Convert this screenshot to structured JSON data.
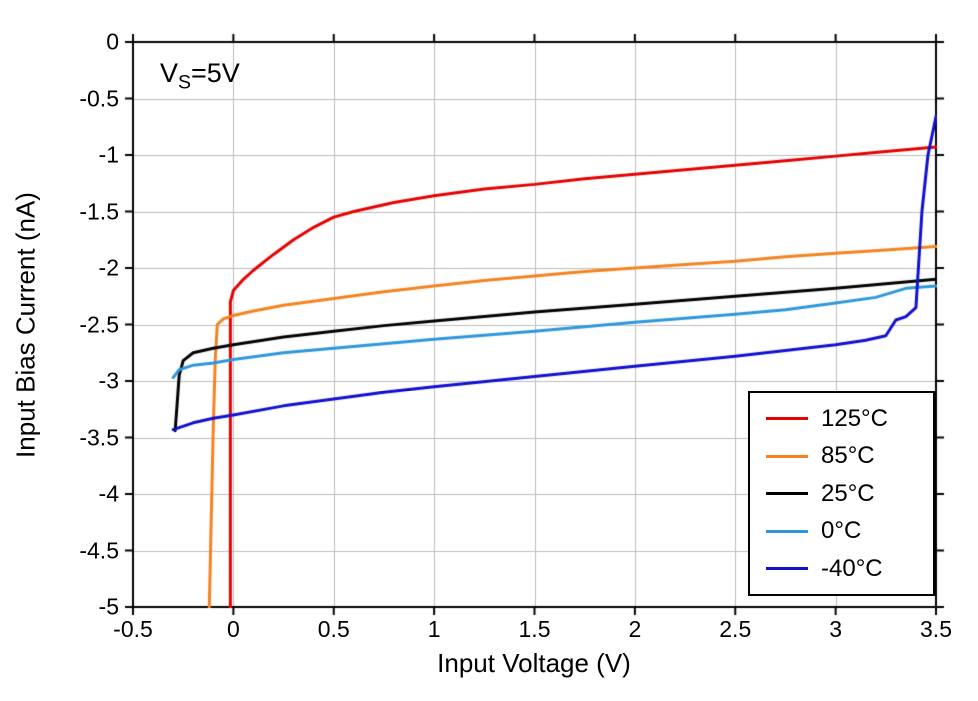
{
  "chart_data": {
    "type": "line",
    "title": "",
    "xlabel": "Input Voltage (V)",
    "ylabel": "Input Bias Current (nA)",
    "xlim": [
      -0.5,
      3.5
    ],
    "ylim": [
      -5,
      0
    ],
    "grid": true,
    "legend_position": "bottom-right",
    "annotation": {
      "main": "V",
      "sub": "S",
      "rest": "=5V"
    },
    "xticks": [
      "-0.5",
      "0",
      "0.5",
      "1",
      "1.5",
      "2",
      "2.5",
      "3",
      "3.5"
    ],
    "yticks": [
      "0",
      "-0.5",
      "-1",
      "-1.5",
      "-2",
      "-2.5",
      "-3",
      "-3.5",
      "-4",
      "-4.5",
      "-5"
    ],
    "colors": {
      "grid": "#bdbdbd",
      "axis": "#000000",
      "background": "#ffffff"
    },
    "series": [
      {
        "name": "125°C",
        "color": "#e60000",
        "points": [
          [
            -0.015,
            -5
          ],
          [
            -0.015,
            -2.3
          ],
          [
            0,
            -2.2
          ],
          [
            0.05,
            -2.1
          ],
          [
            0.1,
            -2.02
          ],
          [
            0.2,
            -1.88
          ],
          [
            0.3,
            -1.75
          ],
          [
            0.4,
            -1.64
          ],
          [
            0.5,
            -1.55
          ],
          [
            0.6,
            -1.5
          ],
          [
            0.8,
            -1.42
          ],
          [
            1.0,
            -1.36
          ],
          [
            1.25,
            -1.3
          ],
          [
            1.5,
            -1.26
          ],
          [
            1.75,
            -1.21
          ],
          [
            2.0,
            -1.17
          ],
          [
            2.25,
            -1.13
          ],
          [
            2.5,
            -1.09
          ],
          [
            2.75,
            -1.05
          ],
          [
            3.0,
            -1.01
          ],
          [
            3.25,
            -0.97
          ],
          [
            3.5,
            -0.93
          ]
        ]
      },
      {
        "name": "85°C",
        "color": "#f5821f",
        "points": [
          [
            -0.12,
            -5
          ],
          [
            -0.1,
            -3.4
          ],
          [
            -0.09,
            -2.8
          ],
          [
            -0.08,
            -2.5
          ],
          [
            -0.05,
            -2.45
          ],
          [
            0,
            -2.42
          ],
          [
            0.1,
            -2.38
          ],
          [
            0.25,
            -2.33
          ],
          [
            0.5,
            -2.27
          ],
          [
            0.75,
            -2.21
          ],
          [
            1.0,
            -2.16
          ],
          [
            1.25,
            -2.11
          ],
          [
            1.5,
            -2.07
          ],
          [
            1.75,
            -2.03
          ],
          [
            2.0,
            -2.0
          ],
          [
            2.25,
            -1.97
          ],
          [
            2.5,
            -1.94
          ],
          [
            2.75,
            -1.9
          ],
          [
            3.0,
            -1.87
          ],
          [
            3.25,
            -1.84
          ],
          [
            3.5,
            -1.81
          ]
        ]
      },
      {
        "name": "25°C",
        "color": "#000000",
        "points": [
          [
            -0.29,
            -3.44
          ],
          [
            -0.28,
            -3.2
          ],
          [
            -0.27,
            -2.95
          ],
          [
            -0.25,
            -2.82
          ],
          [
            -0.2,
            -2.75
          ],
          [
            -0.1,
            -2.71
          ],
          [
            0,
            -2.68
          ],
          [
            0.25,
            -2.61
          ],
          [
            0.5,
            -2.56
          ],
          [
            0.75,
            -2.51
          ],
          [
            1.0,
            -2.47
          ],
          [
            1.5,
            -2.39
          ],
          [
            2.0,
            -2.32
          ],
          [
            2.5,
            -2.25
          ],
          [
            3.0,
            -2.18
          ],
          [
            3.25,
            -2.14
          ],
          [
            3.5,
            -2.1
          ]
        ]
      },
      {
        "name": "0°C",
        "color": "#2f96dc",
        "points": [
          [
            -0.3,
            -2.97
          ],
          [
            -0.27,
            -2.9
          ],
          [
            -0.2,
            -2.86
          ],
          [
            -0.1,
            -2.84
          ],
          [
            0,
            -2.81
          ],
          [
            0.25,
            -2.75
          ],
          [
            0.5,
            -2.71
          ],
          [
            0.75,
            -2.67
          ],
          [
            1.0,
            -2.63
          ],
          [
            1.5,
            -2.56
          ],
          [
            2.0,
            -2.48
          ],
          [
            2.5,
            -2.41
          ],
          [
            2.75,
            -2.37
          ],
          [
            3.0,
            -2.31
          ],
          [
            3.2,
            -2.26
          ],
          [
            3.35,
            -2.18
          ],
          [
            3.5,
            -2.16
          ]
        ]
      },
      {
        "name": "-40°C",
        "color": "#1010d0",
        "points": [
          [
            -0.3,
            -3.43
          ],
          [
            -0.2,
            -3.37
          ],
          [
            -0.1,
            -3.33
          ],
          [
            0,
            -3.3
          ],
          [
            0.25,
            -3.22
          ],
          [
            0.5,
            -3.16
          ],
          [
            0.75,
            -3.1
          ],
          [
            1.0,
            -3.05
          ],
          [
            1.5,
            -2.96
          ],
          [
            2.0,
            -2.87
          ],
          [
            2.5,
            -2.78
          ],
          [
            3.0,
            -2.68
          ],
          [
            3.15,
            -2.64
          ],
          [
            3.25,
            -2.6
          ],
          [
            3.3,
            -2.46
          ],
          [
            3.35,
            -2.43
          ],
          [
            3.4,
            -2.35
          ],
          [
            3.43,
            -1.5
          ],
          [
            3.46,
            -1.0
          ],
          [
            3.5,
            -0.66
          ]
        ]
      }
    ]
  }
}
